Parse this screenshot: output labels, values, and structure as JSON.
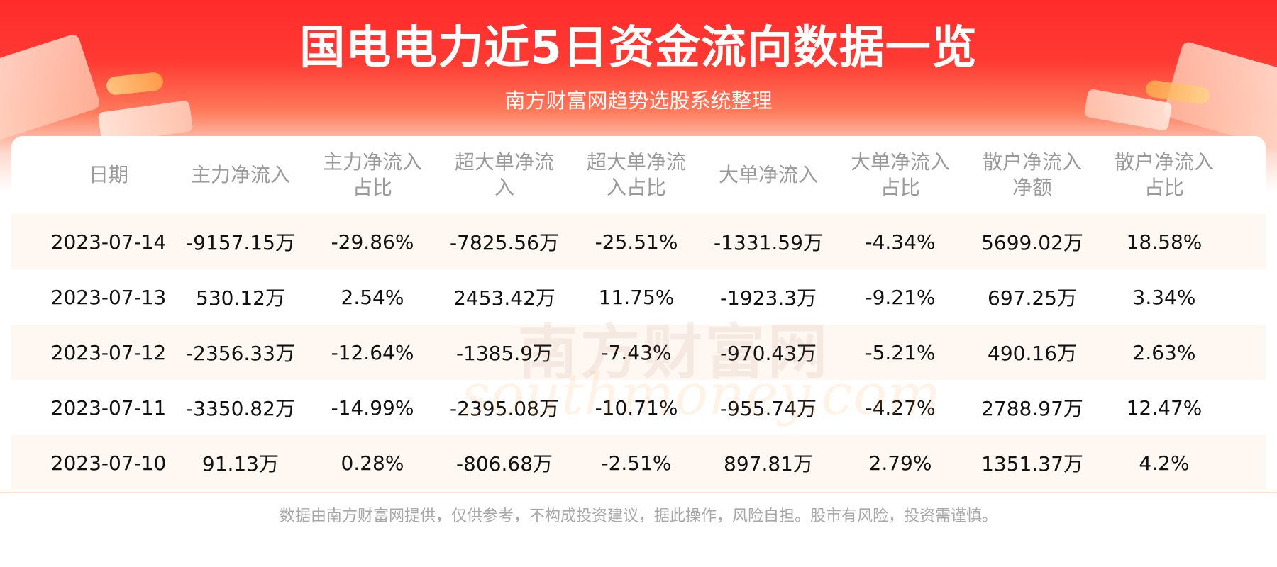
{
  "title": "国电电力近5日资金流向数据一览",
  "subtitle": "南方财富网趋势选股系统整理",
  "table": {
    "headers": [
      "日期",
      "主力净流入",
      "主力净流入\n占比",
      "超大单净流\n入",
      "超大单净流\n入占比",
      "大单净流入",
      "大单净流入\n占比",
      "散户净流入\n净额",
      "散户净流入\n占比"
    ],
    "rows": [
      [
        "2023-07-14",
        "-9157.15万",
        "-29.86%",
        "-7825.56万",
        "-25.51%",
        "-1331.59万",
        "-4.34%",
        "5699.02万",
        "18.58%"
      ],
      [
        "2023-07-13",
        "530.12万",
        "2.54%",
        "2453.42万",
        "11.75%",
        "-1923.3万",
        "-9.21%",
        "697.25万",
        "3.34%"
      ],
      [
        "2023-07-12",
        "-2356.33万",
        "-12.64%",
        "-1385.9万",
        "-7.43%",
        "-970.43万",
        "-5.21%",
        "490.16万",
        "2.63%"
      ],
      [
        "2023-07-11",
        "-3350.82万",
        "-14.99%",
        "-2395.08万",
        "-10.71%",
        "-955.74万",
        "-4.27%",
        "2788.97万",
        "12.47%"
      ],
      [
        "2023-07-10",
        "91.13万",
        "0.28%",
        "-806.68万",
        "-2.51%",
        "897.81万",
        "2.79%",
        "1351.37万",
        "4.2%"
      ]
    ]
  },
  "watermark": {
    "cn": "南方财富网",
    "en": "southmoney.com"
  },
  "footer": "数据由南方财富网提供，仅供参考，不构成投资建议，据此操作，风险自担。股市有风险，投资需谨慎。",
  "colors": {
    "banner_red": "#ff2b2b",
    "row_stripe": "#fff7f1",
    "header_text": "#9a9a9a",
    "cell_text": "#111111"
  }
}
